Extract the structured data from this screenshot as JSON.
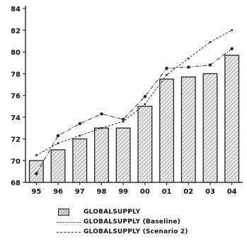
{
  "chart_data": {
    "type": "bar",
    "categories": [
      "95",
      "96",
      "97",
      "98",
      "99",
      "00",
      "01",
      "02",
      "03",
      "04"
    ],
    "series": [
      {
        "name": "GLOBALSUPPLY",
        "kind": "bar",
        "values": [
          70.0,
          71.0,
          72.0,
          73.0,
          73.0,
          75.0,
          77.5,
          77.7,
          78.0,
          79.7
        ]
      },
      {
        "name": "GLOBALSUPPLY (Baseline)",
        "kind": "line",
        "style": "dash-dot",
        "values": [
          68.8,
          72.3,
          73.4,
          74.3,
          73.8,
          75.9,
          78.5,
          78.6,
          78.8,
          80.3
        ]
      },
      {
        "name": "GLOBALSUPPLY (Scenario 2)",
        "kind": "line",
        "style": "dashed",
        "values": [
          70.5,
          71.6,
          72.3,
          73.0,
          73.6,
          75.2,
          77.9,
          79.4,
          80.9,
          82.0
        ]
      }
    ],
    "ylim": [
      68,
      84
    ],
    "yticks": [
      "84",
      "82",
      "80",
      "78",
      "76",
      "74",
      "72",
      "70",
      "68"
    ],
    "grid": false,
    "legend_placement": "bottom"
  },
  "colors": {
    "bar_fill": "#cfcfcf",
    "bar_edge": "#222222",
    "line": "#333333"
  }
}
